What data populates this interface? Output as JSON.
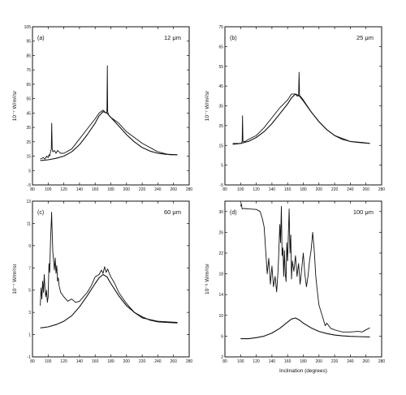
{
  "chart_data": [
    {
      "type": "line",
      "panel": "(a)",
      "band": "12 μm",
      "ylabel": "10⁻⁷ W/m²/sr",
      "xlabel": "",
      "xlim": [
        80,
        280
      ],
      "ylim": [
        -5,
        105
      ],
      "xticks": [
        80,
        100,
        120,
        140,
        160,
        180,
        200,
        220,
        240,
        260,
        280
      ],
      "yticks": [
        -5,
        5,
        15,
        25,
        35,
        45,
        55,
        65,
        75,
        85,
        95,
        105
      ],
      "series": [
        {
          "role": "observed",
          "x": [
            90,
            94,
            96,
            98,
            100,
            101,
            102,
            103,
            104,
            104.6,
            105.2,
            106,
            108,
            110,
            112,
            114,
            116,
            120,
            130,
            140,
            150,
            160,
            165,
            170,
            172,
            174,
            175,
            175.5,
            176,
            177,
            178,
            180,
            190,
            200,
            220,
            240,
            255,
            265
          ],
          "y": [
            13,
            14,
            13,
            15,
            14,
            16,
            15,
            18,
            20,
            38,
            20,
            18,
            19,
            17,
            19,
            18,
            17,
            17,
            20,
            27,
            34,
            41,
            45,
            47,
            46,
            45,
            46,
            78,
            46,
            44,
            43,
            42,
            38,
            32,
            24,
            18,
            16,
            16
          ]
        },
        {
          "role": "model",
          "x": [
            90,
            100,
            110,
            120,
            130,
            140,
            150,
            160,
            165,
            170,
            175,
            180,
            190,
            200,
            210,
            220,
            230,
            240,
            250,
            265
          ],
          "y": [
            12,
            12.5,
            13.5,
            15,
            18,
            23,
            30,
            38,
            43,
            46,
            45,
            42,
            36,
            30,
            25,
            21,
            18.5,
            17,
            16.3,
            16
          ]
        }
      ]
    },
    {
      "type": "line",
      "panel": "(b)",
      "band": "25 μm",
      "ylabel": "10⁻⁷ W/m²/sr",
      "xlabel": "",
      "xlim": [
        80,
        280
      ],
      "ylim": [
        -5,
        75
      ],
      "xticks": [
        80,
        100,
        120,
        140,
        160,
        180,
        200,
        220,
        240,
        260,
        280
      ],
      "yticks": [
        -5,
        5,
        15,
        25,
        35,
        45,
        55,
        65,
        75
      ],
      "series": [
        {
          "role": "observed",
          "x": [
            90,
            94,
            98,
            100,
            101,
            102,
            102.5,
            103,
            104,
            106,
            110,
            120,
            130,
            140,
            150,
            160,
            165,
            170,
            172,
            174,
            174.6,
            175.2,
            176,
            178,
            180,
            190,
            200,
            210,
            220,
            240,
            255,
            265
          ],
          "y": [
            16,
            16,
            16,
            16,
            16,
            17,
            30,
            17,
            17,
            17,
            18,
            20,
            24,
            29,
            34,
            38,
            41,
            41,
            40,
            40,
            52,
            40,
            40,
            39,
            38,
            32,
            27,
            23,
            20,
            17,
            16.5,
            16
          ]
        },
        {
          "role": "model",
          "x": [
            90,
            100,
            110,
            120,
            130,
            140,
            150,
            160,
            165,
            170,
            175,
            180,
            190,
            200,
            210,
            220,
            230,
            240,
            250,
            265
          ],
          "y": [
            15.5,
            16,
            17,
            19,
            22,
            26,
            31,
            36,
            39,
            41,
            40,
            37.5,
            32,
            27,
            23,
            20,
            18,
            17,
            16.5,
            16
          ]
        }
      ]
    },
    {
      "type": "line",
      "panel": "(c)",
      "band": "60 μm",
      "ylabel": "10⁻⁷ W/m²/sr",
      "xlabel": "",
      "xlim": [
        80,
        280
      ],
      "ylim": [
        -1,
        13
      ],
      "xticks": [
        80,
        100,
        120,
        140,
        160,
        180,
        200,
        220,
        240,
        260,
        280
      ],
      "yticks": [
        -1,
        1,
        3,
        5,
        7,
        9,
        11,
        13
      ],
      "series": [
        {
          "role": "observed",
          "x": [
            90,
            91,
            92,
            93,
            94,
            95,
            96,
            97,
            98,
            99,
            100,
            101,
            102,
            103,
            104,
            104.5,
            105,
            106,
            107,
            108,
            109,
            110,
            111,
            112,
            113,
            114,
            116,
            118,
            120,
            125,
            130,
            135,
            140,
            145,
            150,
            155,
            160,
            165,
            168,
            170,
            172,
            174,
            176,
            178,
            180,
            185,
            190,
            200,
            210,
            220,
            240,
            265
          ],
          "y": [
            3.6,
            5.2,
            4.2,
            5.8,
            4.8,
            6.4,
            5.1,
            4.4,
            5.0,
            3.9,
            4.4,
            7.4,
            6.6,
            9.4,
            11.2,
            12.0,
            10.5,
            8.4,
            7.6,
            6.8,
            7.9,
            6.5,
            7.2,
            5.8,
            6.1,
            5.4,
            4.8,
            4.6,
            4.4,
            4.0,
            4.2,
            3.9,
            4.0,
            4.4,
            4.8,
            5.4,
            6.2,
            6.4,
            6.8,
            6.5,
            7.1,
            6.6,
            6.9,
            6.5,
            6.2,
            5.6,
            4.8,
            3.8,
            3.0,
            2.5,
            2.2,
            2.1
          ]
        },
        {
          "role": "model",
          "x": [
            90,
            100,
            110,
            120,
            130,
            140,
            150,
            160,
            165,
            170,
            175,
            180,
            190,
            200,
            210,
            220,
            230,
            240,
            250,
            265
          ],
          "y": [
            1.6,
            1.7,
            1.9,
            2.2,
            2.7,
            3.5,
            4.5,
            5.6,
            6.1,
            6.4,
            6.2,
            5.6,
            4.5,
            3.6,
            3.0,
            2.6,
            2.3,
            2.15,
            2.1,
            2.05
          ]
        }
      ]
    },
    {
      "type": "line",
      "panel": "(d)",
      "band": "100 μm",
      "ylabel": "10⁻⁸ W/m²/sr",
      "xlabel": "Inclination (degrees)",
      "xlim": [
        80,
        280
      ],
      "ylim": [
        2,
        32
      ],
      "xticks": [
        80,
        100,
        120,
        140,
        160,
        180,
        200,
        220,
        240,
        260,
        280
      ],
      "yticks": [
        2,
        6,
        10,
        14,
        18,
        22,
        26,
        30
      ],
      "series": [
        {
          "role": "observed",
          "x": [
            100,
            101,
            102,
            104,
            110,
            120,
            125,
            128,
            130,
            132,
            134,
            136,
            138,
            140,
            142,
            144,
            146,
            148,
            150,
            151,
            152,
            153,
            154,
            155,
            156,
            157,
            158,
            159,
            160,
            161,
            162,
            163,
            164,
            165,
            166,
            168,
            170,
            172,
            174,
            176,
            178,
            180,
            182,
            184,
            186,
            188,
            190,
            192,
            194,
            196,
            198,
            200,
            202,
            204,
            206,
            208,
            210,
            215,
            220,
            225,
            230,
            240,
            250,
            255,
            260,
            265
          ],
          "y": [
            31,
            31.5,
            30.5,
            30.6,
            30.5,
            30.4,
            30.0,
            28.5,
            27.0,
            22.5,
            18.0,
            21.0,
            16.0,
            19.5,
            15.5,
            17.5,
            14.5,
            19.0,
            27.5,
            24.0,
            31.0,
            21.5,
            23.0,
            17.5,
            22.5,
            18.0,
            16.5,
            24.0,
            20.5,
            26.0,
            30.5,
            22.0,
            25.5,
            17.0,
            20.5,
            18.5,
            21.5,
            17.5,
            20.0,
            16.0,
            19.0,
            22.0,
            18.0,
            15.5,
            17.5,
            20.5,
            22.5,
            26.0,
            22.5,
            17.5,
            14.5,
            12.0,
            11.0,
            10.0,
            9.0,
            8.0,
            8.5,
            7.5,
            7.2,
            7.0,
            6.8,
            6.8,
            6.9,
            6.8,
            7.2,
            7.6
          ]
        },
        {
          "role": "model",
          "x": [
            100,
            110,
            120,
            130,
            140,
            150,
            160,
            165,
            170,
            175,
            180,
            190,
            200,
            210,
            220,
            230,
            240,
            250,
            265
          ],
          "y": [
            5.5,
            5.5,
            5.7,
            6.0,
            6.6,
            7.5,
            8.7,
            9.3,
            9.5,
            9.1,
            8.5,
            7.6,
            6.9,
            6.5,
            6.2,
            6.05,
            5.95,
            5.9,
            5.85
          ]
        }
      ]
    }
  ]
}
